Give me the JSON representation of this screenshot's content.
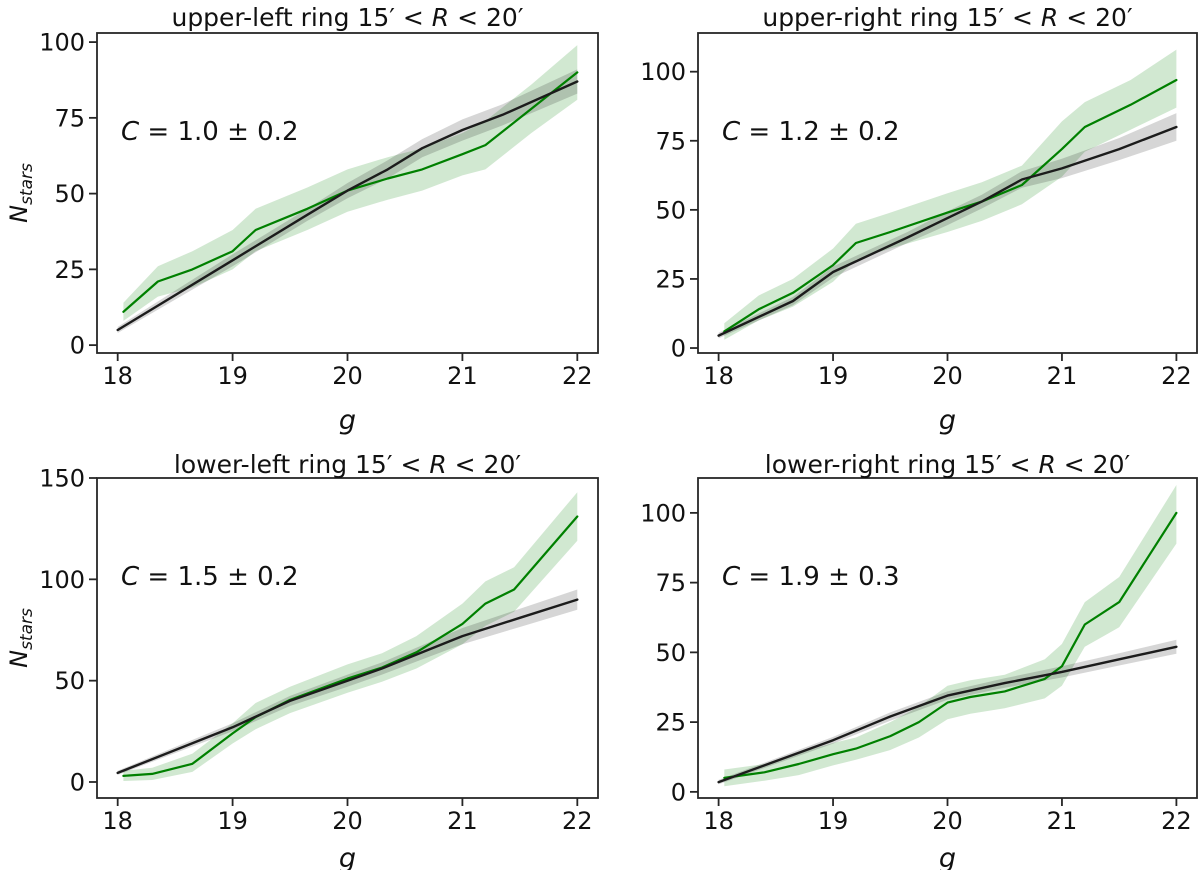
{
  "figure": {
    "colors": {
      "observed_line": "#008000",
      "observed_band": "rgba(0,128,0,0.18)",
      "model_line": "#1c1c1c",
      "model_band": "rgba(0,0,0,0.16)",
      "frame": "#262626",
      "text": "#111111",
      "background": "#ffffff"
    }
  },
  "chart_data": [
    {
      "type": "line",
      "title": "upper-left ring 15′ < R < 20′",
      "annotation": "C = 1.0 ± 0.2",
      "xlabel": "g",
      "ylabel": "N_stars",
      "xlim": [
        17.82,
        22.18
      ],
      "ylim": [
        -2.6,
        103
      ],
      "xticks": [
        18,
        19,
        20,
        21,
        22
      ],
      "yticks": [
        0,
        25,
        50,
        75,
        100
      ],
      "grid": false,
      "legend": "none",
      "series": [
        {
          "name": "observed-green",
          "color": "#008000",
          "band_color": "rgba(0,128,0,0.18)",
          "x": [
            18.05,
            18.35,
            18.65,
            19.0,
            19.2,
            19.65,
            20.0,
            20.35,
            20.65,
            21.0,
            21.2,
            21.6,
            22.0
          ],
          "y": [
            11,
            21,
            25,
            31,
            38,
            45,
            51,
            55,
            58,
            63,
            66,
            78,
            90
          ],
          "band_lo": [
            8,
            16,
            19,
            25,
            31,
            38,
            44,
            48,
            51,
            56,
            58,
            70,
            81
          ],
          "band_hi": [
            14,
            26,
            31,
            38,
            45,
            52,
            58,
            62,
            65,
            70,
            74,
            86,
            99
          ]
        },
        {
          "name": "model-black",
          "color": "#1c1c1c",
          "band_color": "rgba(0,0,0,0.16)",
          "x": [
            18.0,
            19.0,
            19.65,
            20.0,
            20.35,
            20.65,
            21.0,
            21.35,
            22.0
          ],
          "y": [
            5,
            28,
            43,
            51,
            58,
            65,
            71,
            76,
            87
          ],
          "band_lo": [
            4,
            26,
            41,
            48.5,
            55,
            62,
            67.5,
            72.5,
            83
          ],
          "band_hi": [
            6,
            30,
            45,
            53.5,
            61,
            68,
            74.5,
            79.5,
            91
          ]
        }
      ]
    },
    {
      "type": "line",
      "title": "upper-right ring 15′ < R < 20′",
      "annotation": "C = 1.2 ± 0.2",
      "xlabel": "g",
      "ylabel": "",
      "xlim": [
        17.82,
        22.18
      ],
      "ylim": [
        -1.8,
        114
      ],
      "xticks": [
        18,
        19,
        20,
        21,
        22
      ],
      "yticks": [
        0,
        25,
        50,
        75,
        100
      ],
      "grid": false,
      "legend": "none",
      "series": [
        {
          "name": "observed-green",
          "color": "#008000",
          "band_color": "rgba(0,128,0,0.18)",
          "x": [
            18.05,
            18.35,
            18.65,
            19.0,
            19.2,
            19.5,
            20.0,
            20.3,
            20.65,
            21.0,
            21.2,
            21.6,
            22.0
          ],
          "y": [
            6,
            14,
            20,
            30,
            38,
            42,
            49,
            53,
            59,
            72,
            80,
            88,
            97
          ],
          "band_lo": [
            3,
            10,
            15,
            24,
            32,
            36,
            42,
            46,
            52,
            62,
            71,
            79,
            87
          ],
          "band_hi": [
            9,
            19,
            25,
            36,
            45,
            49,
            56,
            60,
            66,
            82,
            89,
            97,
            108
          ]
        },
        {
          "name": "model-black",
          "color": "#1c1c1c",
          "band_color": "rgba(0,0,0,0.16)",
          "x": [
            18.0,
            18.65,
            19.0,
            19.65,
            20.0,
            20.3,
            20.65,
            21.0,
            21.5,
            22.0
          ],
          "y": [
            4.5,
            17,
            27.5,
            40,
            47,
            53,
            61,
            65,
            72,
            80
          ],
          "band_lo": [
            3.5,
            15.5,
            25.5,
            38,
            44.5,
            50.5,
            58,
            61.5,
            68,
            75
          ],
          "band_hi": [
            5.5,
            18.5,
            29.5,
            42,
            49.5,
            55.5,
            64,
            68.5,
            76,
            85
          ]
        }
      ]
    },
    {
      "type": "line",
      "title": "lower-left ring 15′ < R < 20′",
      "annotation": "C = 1.5 ± 0.2",
      "xlabel": "g",
      "ylabel": "N_stars",
      "xlim": [
        17.82,
        22.18
      ],
      "ylim": [
        -7.9,
        150
      ],
      "xticks": [
        18,
        19,
        20,
        21,
        22
      ],
      "yticks": [
        0,
        50,
        100,
        150
      ],
      "grid": false,
      "legend": "none",
      "series": [
        {
          "name": "observed-green",
          "color": "#008000",
          "band_color": "rgba(0,128,0,0.18)",
          "x": [
            18.05,
            18.3,
            18.65,
            19.0,
            19.2,
            19.5,
            20.0,
            20.3,
            20.6,
            21.0,
            21.2,
            21.45,
            22.0
          ],
          "y": [
            3,
            4,
            9,
            24,
            32,
            40.5,
            51,
            56.5,
            64,
            78,
            88,
            95,
            131
          ],
          "band_lo": [
            0.5,
            1,
            5,
            19,
            26,
            34,
            44,
            49.5,
            56,
            68,
            77,
            84,
            119
          ],
          "band_hi": [
            5.5,
            7,
            14,
            29,
            39,
            47,
            58,
            63.5,
            72,
            88,
            99,
            106,
            143
          ]
        },
        {
          "name": "model-black",
          "color": "#1c1c1c",
          "band_color": "rgba(0,0,0,0.16)",
          "x": [
            18.0,
            19.0,
            19.5,
            20.0,
            20.3,
            20.65,
            21.0,
            21.5,
            22.0
          ],
          "y": [
            4.5,
            27,
            40,
            50,
            56,
            64,
            72,
            81,
            90
          ],
          "band_lo": [
            3.5,
            25,
            37.5,
            47,
            53,
            60.5,
            68,
            76.5,
            85
          ],
          "band_hi": [
            5.5,
            29,
            42.5,
            53,
            59,
            67.5,
            76,
            85.5,
            95
          ]
        }
      ]
    },
    {
      "type": "line",
      "title": "lower-right ring 15′ < R < 20′",
      "annotation": "C = 1.9 ± 0.3",
      "xlabel": "g",
      "ylabel": "",
      "xlim": [
        17.82,
        22.18
      ],
      "ylim": [
        -2.2,
        112.5
      ],
      "xticks": [
        18,
        19,
        20,
        21,
        22
      ],
      "yticks": [
        0,
        25,
        50,
        75,
        100
      ],
      "grid": false,
      "legend": "none",
      "series": [
        {
          "name": "observed-green",
          "color": "#008000",
          "band_color": "rgba(0,128,0,0.18)",
          "x": [
            18.05,
            18.4,
            18.7,
            19.0,
            19.2,
            19.5,
            19.75,
            20.0,
            20.2,
            20.5,
            20.85,
            21.0,
            21.2,
            21.5,
            22.0
          ],
          "y": [
            5,
            7,
            10,
            13.5,
            15.5,
            20,
            25,
            32,
            34,
            36,
            40.5,
            45,
            60,
            68,
            100
          ],
          "band_lo": [
            2,
            4,
            6,
            9.5,
            11.5,
            15,
            19.5,
            26,
            28,
            30,
            33.5,
            38,
            52,
            59,
            89
          ],
          "band_hi": [
            8,
            10,
            14,
            17.5,
            19.5,
            25,
            30.5,
            38,
            40,
            42,
            47.5,
            53,
            68,
            77,
            110
          ]
        },
        {
          "name": "model-black",
          "color": "#1c1c1c",
          "band_color": "rgba(0,0,0,0.16)",
          "x": [
            18.0,
            19.0,
            19.5,
            20.0,
            20.5,
            21.0,
            21.5,
            22.0
          ],
          "y": [
            3.5,
            18.5,
            27,
            34.5,
            39,
            43,
            47.5,
            52
          ],
          "band_lo": [
            2.7,
            17.3,
            25.5,
            33,
            37.3,
            41,
            45.3,
            49.5
          ],
          "band_hi": [
            4.3,
            19.7,
            28.5,
            36,
            40.7,
            45,
            49.7,
            54.5
          ]
        }
      ]
    }
  ]
}
